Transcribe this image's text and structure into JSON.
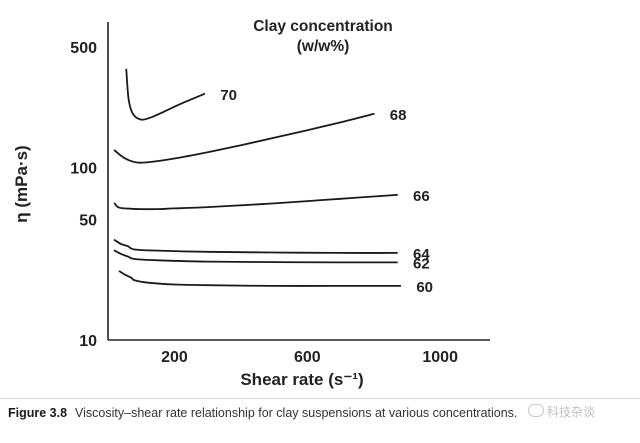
{
  "chart_data": {
    "type": "line",
    "title": "Clay concentration",
    "subtitle": "(w/w%)",
    "xlabel": "Shear rate (s⁻¹)",
    "ylabel": "η (mPa·s)",
    "yscale": "log",
    "xlim": [
      0,
      1150
    ],
    "ylim": [
      10,
      700
    ],
    "x_ticks": [
      200,
      600,
      1000
    ],
    "y_ticks": [
      10,
      50,
      100,
      500
    ],
    "grid": false,
    "series": [
      {
        "name": "70",
        "x": [
          55,
          62,
          75,
          100,
          130,
          170,
          220,
          290
        ],
        "y": [
          370,
          250,
          205,
          190,
          196,
          212,
          235,
          268
        ]
      },
      {
        "name": "68",
        "x": [
          20,
          40,
          60,
          90,
          130,
          200,
          300,
          400,
          500,
          600,
          700,
          800
        ],
        "y": [
          126,
          117,
          111,
          107,
          108,
          113,
          123,
          135,
          149,
          165,
          183,
          205
        ]
      },
      {
        "name": "66",
        "x": [
          20,
          30,
          50,
          100,
          150,
          200,
          300,
          400,
          500,
          600,
          700,
          800,
          870
        ],
        "y": [
          62,
          59,
          58,
          57.5,
          57.5,
          58,
          59,
          60.5,
          62,
          64,
          66,
          68,
          69.5
        ]
      },
      {
        "name": "64",
        "x": [
          20,
          40,
          60,
          80,
          150,
          300,
          500,
          700,
          870
        ],
        "y": [
          38,
          36,
          35,
          33.5,
          33,
          32.5,
          32.2,
          32,
          32
        ]
      },
      {
        "name": "62",
        "x": [
          20,
          40,
          60,
          80,
          150,
          300,
          500,
          700,
          870
        ],
        "y": [
          33,
          31.5,
          30.5,
          29.5,
          29,
          28.5,
          28.3,
          28.2,
          28.2
        ]
      },
      {
        "name": "60",
        "x": [
          35,
          50,
          70,
          80,
          120,
          200,
          300,
          500,
          700,
          880
        ],
        "y": [
          25,
          24,
          23,
          22.2,
          21.5,
          21,
          20.8,
          20.6,
          20.6,
          20.6
        ]
      }
    ]
  },
  "caption": {
    "figure_label": "Figure 3.8",
    "text": "Viscosity–shear rate relationship for clay suspensions at various concentrations."
  },
  "watermark": {
    "text": "科技杂谈"
  }
}
